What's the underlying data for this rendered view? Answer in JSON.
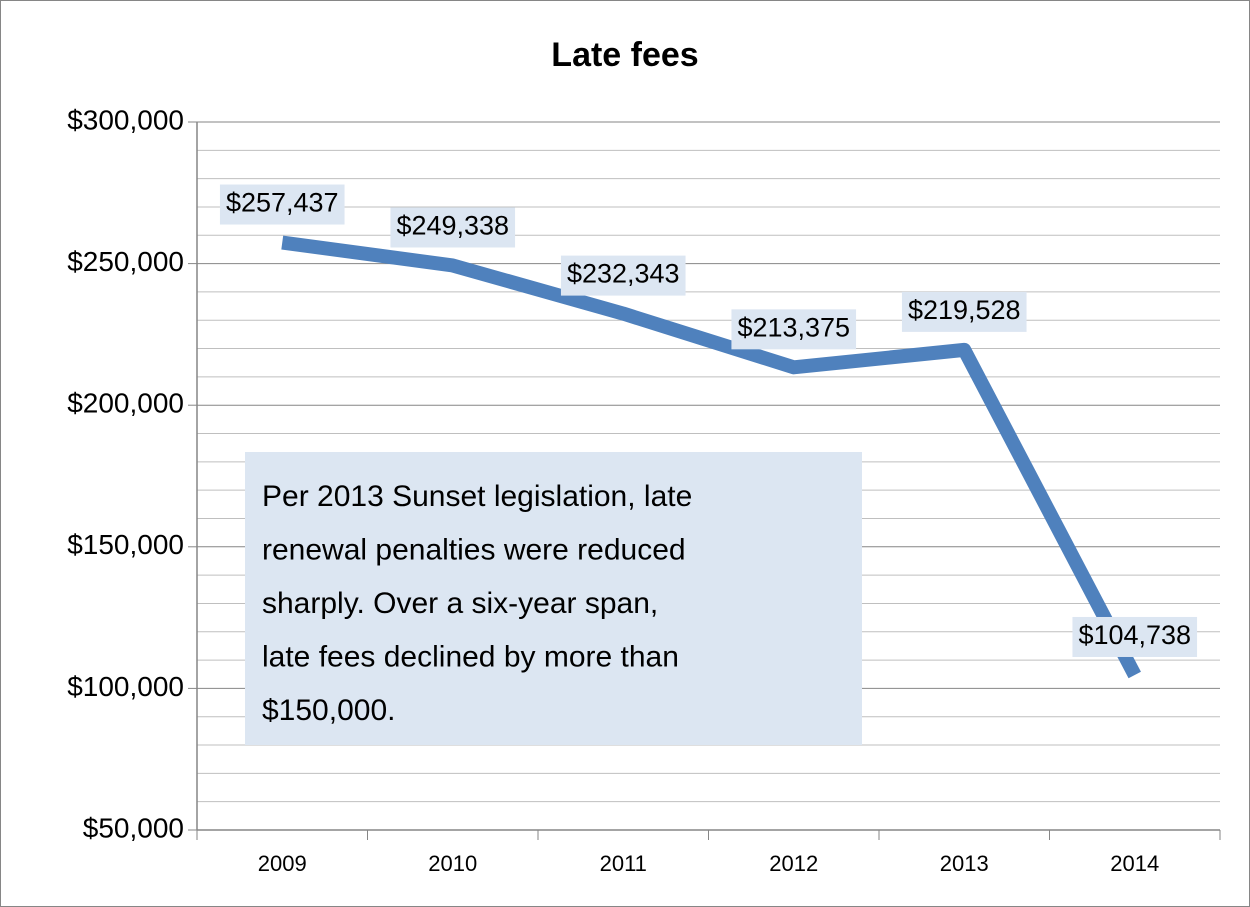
{
  "chart_data": {
    "type": "line",
    "title": "Late fees",
    "categories": [
      "2009",
      "2010",
      "2011",
      "2012",
      "2013",
      "2014"
    ],
    "series": [
      {
        "name": "Late fees",
        "color": "#4f81bd",
        "values": [
          257437,
          249338,
          232343,
          213375,
          219528,
          104738
        ],
        "value_labels": [
          "$257,437",
          "$249,338",
          "$232,343",
          "$213,375",
          "$219,528",
          "$104,738"
        ]
      }
    ],
    "ylim": [
      50000,
      300000
    ],
    "yticks": [
      {
        "value": 50000,
        "label": "$50,000"
      },
      {
        "value": 100000,
        "label": "$100,000"
      },
      {
        "value": 150000,
        "label": "$150,000"
      },
      {
        "value": 200000,
        "label": "$200,000"
      },
      {
        "value": 250000,
        "label": "$250,000"
      },
      {
        "value": 300000,
        "label": "$300,000"
      }
    ],
    "minor_yticks": [
      60000,
      70000,
      80000,
      90000,
      110000,
      120000,
      130000,
      140000,
      160000,
      170000,
      180000,
      190000,
      210000,
      220000,
      230000,
      240000,
      260000,
      270000,
      280000,
      290000
    ],
    "grid": true,
    "annotation": [
      "Per 2013 Sunset legislation, late",
      "renewal penalties were reduced",
      "sharply.  Over a six-year span,",
      "late fees declined by more than",
      "$150,000."
    ]
  }
}
